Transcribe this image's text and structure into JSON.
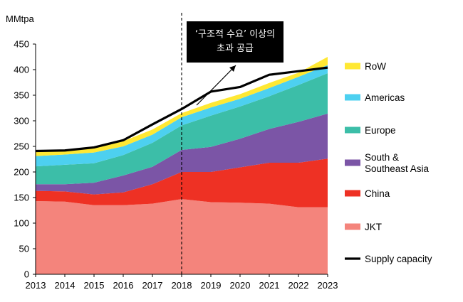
{
  "chart_data": {
    "type": "area",
    "stacked": true,
    "unit_label": "MMtpa",
    "x": [
      2013,
      2014,
      2015,
      2016,
      2017,
      2018,
      2019,
      2020,
      2021,
      2022,
      2023
    ],
    "ylim": [
      0,
      450
    ],
    "yticks": [
      0,
      50,
      100,
      150,
      200,
      250,
      300,
      350,
      400,
      450
    ],
    "series": [
      {
        "name": "JKT",
        "color": "#F4847C",
        "values": [
          143,
          142,
          135,
          135,
          138,
          147,
          141,
          140,
          138,
          131,
          131
        ]
      },
      {
        "name": "China",
        "color": "#EE3124",
        "values": [
          20,
          20,
          21,
          25,
          38,
          53,
          59,
          69,
          80,
          87,
          95
        ]
      },
      {
        "name": "South & Southeast Asia",
        "color": "#7B55A6",
        "values": [
          13,
          14,
          23,
          33,
          34,
          43,
          49,
          56,
          66,
          80,
          88
        ]
      },
      {
        "name": "Europe",
        "color": "#3CBEA8",
        "values": [
          35,
          38,
          38,
          40,
          47,
          48,
          61,
          63,
          64,
          72,
          79
        ]
      },
      {
        "name": "Americas",
        "color": "#4DD0F0",
        "values": [
          20,
          20,
          21,
          17,
          16,
          16,
          16,
          15,
          16,
          16,
          16
        ]
      },
      {
        "name": "RoW",
        "color": "#FFE833",
        "values": [
          8,
          7,
          9,
          10,
          10,
          8,
          9,
          9,
          10,
          8,
          16
        ]
      }
    ],
    "lines": [
      {
        "name": "Supply capacity",
        "color": "#000000",
        "values": [
          241,
          242,
          248,
          262,
          293,
          323,
          357,
          366,
          390,
          397,
          404
        ]
      }
    ],
    "legend_order": [
      "RoW",
      "Americas",
      "Europe",
      "South & Southeast Asia",
      "China",
      "JKT",
      "Supply capacity"
    ],
    "legend_labels": {
      "RoW": "RoW",
      "Americas": "Americas",
      "Europe": "Europe",
      "South & Southeast Asia": "South & Southeast Asia",
      "China": "China",
      "JKT": "JKT",
      "Supply capacity": "Supply capacity"
    },
    "divider_year": 2018,
    "annotation": {
      "line1": "‘구조적 수요’ 이상의",
      "line2": "초과 공급"
    },
    "legend_position": "right",
    "grid": false
  }
}
